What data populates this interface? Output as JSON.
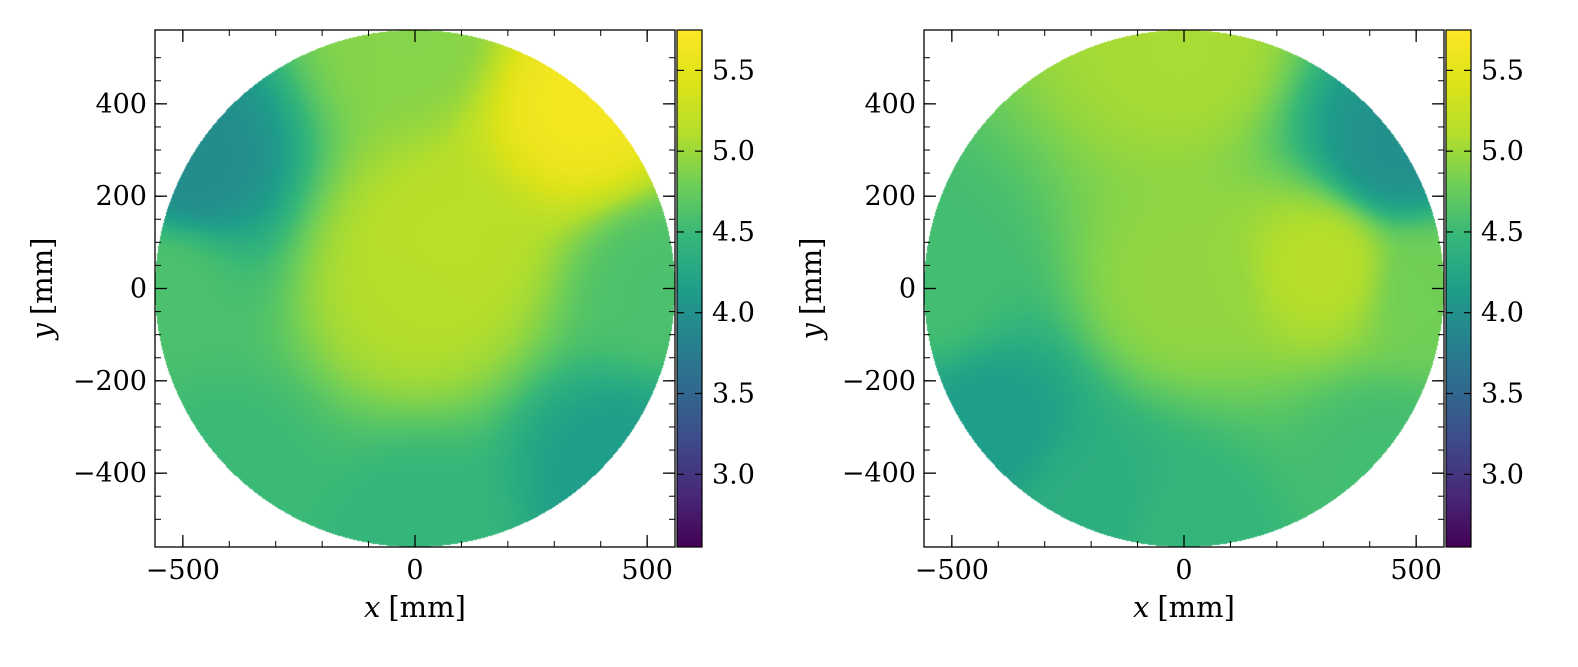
{
  "chart_data": [
    {
      "type": "heatmap",
      "xlabel_var": "x",
      "xlabel_unit": "[mm]",
      "ylabel_var": "y",
      "ylabel_unit": "[mm]",
      "xlim": [
        -560,
        560
      ],
      "ylim": [
        -560,
        560
      ],
      "x_ticks": [
        -500,
        0,
        500
      ],
      "x_tick_labels": [
        "−500",
        "0",
        "500"
      ],
      "y_ticks": [
        -400,
        -200,
        0,
        200,
        400
      ],
      "y_tick_labels": [
        "−400",
        "−200",
        "0",
        "200",
        "400"
      ],
      "domain_shape": "circle",
      "domain_radius": 560,
      "colorbar": {
        "colormap": "viridis",
        "range": [
          2.55,
          5.75
        ],
        "ticks": [
          3.0,
          3.5,
          4.0,
          4.5,
          5.0,
          5.5
        ],
        "tick_labels": [
          "3.0",
          "3.5",
          "4.0",
          "4.5",
          "5.0",
          "5.5"
        ]
      },
      "field_samples": [
        {
          "x": 50,
          "y": 80,
          "value": 5.15
        },
        {
          "x": 0,
          "y": 0,
          "value": 5.1
        },
        {
          "x": 360,
          "y": 400,
          "value": 5.65
        },
        {
          "x": -480,
          "y": 270,
          "value": 3.95
        },
        {
          "x": -540,
          "y": 0,
          "value": 4.6
        },
        {
          "x": 540,
          "y": 0,
          "value": 4.6
        },
        {
          "x": 0,
          "y": 540,
          "value": 4.9
        },
        {
          "x": 0,
          "y": -540,
          "value": 4.45
        },
        {
          "x": 440,
          "y": -390,
          "value": 4.15
        },
        {
          "x": -400,
          "y": -400,
          "value": 4.5
        }
      ]
    },
    {
      "type": "heatmap",
      "xlabel_var": "x",
      "xlabel_unit": "[mm]",
      "ylabel_var": "y",
      "ylabel_unit": "[mm]",
      "xlim": [
        -560,
        560
      ],
      "ylim": [
        -560,
        560
      ],
      "x_ticks": [
        -500,
        0,
        500
      ],
      "x_tick_labels": [
        "−500",
        "0",
        "500"
      ],
      "y_ticks": [
        -400,
        -200,
        0,
        200,
        400
      ],
      "y_tick_labels": [
        "−400",
        "−200",
        "0",
        "200",
        "400"
      ],
      "domain_shape": "circle",
      "domain_radius": 560,
      "colorbar": {
        "colormap": "viridis",
        "range": [
          2.55,
          5.75
        ],
        "ticks": [
          3.0,
          3.5,
          4.0,
          4.5,
          5.0,
          5.5
        ],
        "tick_labels": [
          "3.0",
          "3.5",
          "4.0",
          "4.5",
          "5.0",
          "5.5"
        ]
      },
      "field_samples": [
        {
          "x": 300,
          "y": 50,
          "value": 5.12
        },
        {
          "x": 0,
          "y": 0,
          "value": 4.95
        },
        {
          "x": 0,
          "y": 520,
          "value": 5.05
        },
        {
          "x": 460,
          "y": 300,
          "value": 4.0
        },
        {
          "x": -540,
          "y": 0,
          "value": 4.55
        },
        {
          "x": -420,
          "y": -300,
          "value": 4.15
        },
        {
          "x": -200,
          "y": -480,
          "value": 4.35
        },
        {
          "x": 0,
          "y": -540,
          "value": 4.45
        },
        {
          "x": 430,
          "y": -380,
          "value": 4.55
        },
        {
          "x": 540,
          "y": 0,
          "value": 4.8
        }
      ]
    }
  ]
}
